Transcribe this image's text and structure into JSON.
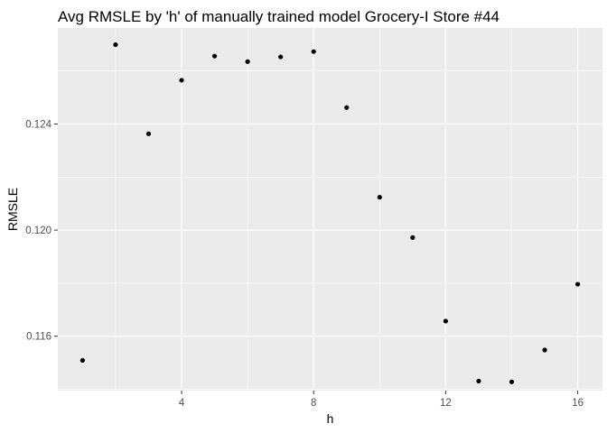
{
  "chart_data": {
    "type": "scatter",
    "title": "Avg RMSLE by 'h' of manually trained model Grocery-I Store #44",
    "xlabel": "h",
    "ylabel": "RMSLE",
    "xlim": [
      0.25,
      16.75
    ],
    "ylim": [
      0.11395,
      0.12762
    ],
    "x_ticks": [
      4,
      8,
      12,
      16
    ],
    "x_tick_labels": [
      "4",
      "8",
      "12",
      "16"
    ],
    "y_ticks": [
      0.116,
      0.12,
      0.124
    ],
    "y_tick_labels": [
      "0.116",
      "0.120",
      "0.124"
    ],
    "grid": true,
    "legend": "none",
    "point_color": "#000000",
    "panel_background": "#ebebeb",
    "grid_color": "#ffffff",
    "x": [
      1,
      2,
      3,
      4,
      5,
      6,
      7,
      8,
      9,
      10,
      11,
      12,
      13,
      14,
      15,
      16
    ],
    "y": [
      0.11509,
      0.12699,
      0.12363,
      0.12565,
      0.12656,
      0.12635,
      0.12653,
      0.12673,
      0.12462,
      0.12124,
      0.11972,
      0.11657,
      0.11431,
      0.11428,
      0.11548,
      0.11796
    ]
  }
}
